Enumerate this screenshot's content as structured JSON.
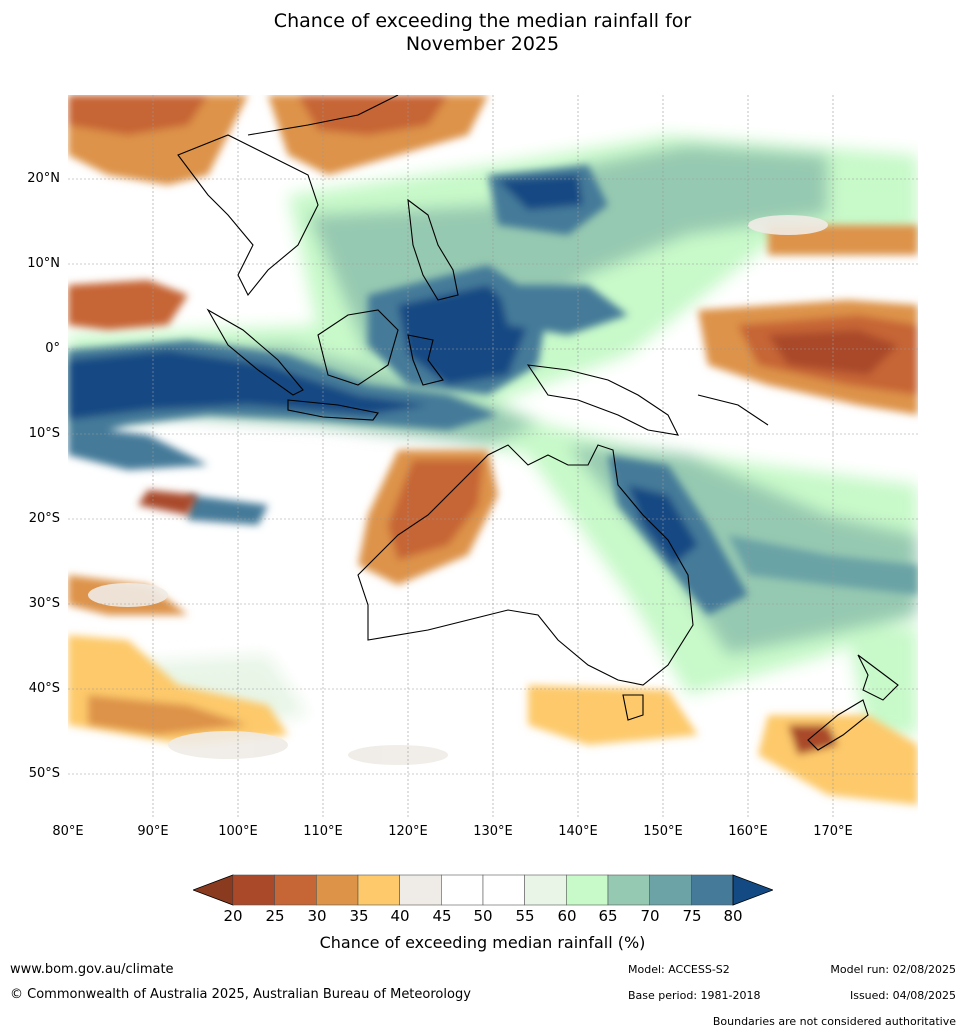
{
  "title_line1": "Chance of exceeding the median rainfall for",
  "title_line2": "November 2025",
  "lat_labels": [
    "20°N",
    "10°N",
    "0°",
    "10°S",
    "20°S",
    "30°S",
    "40°S",
    "50°S"
  ],
  "lon_labels": [
    "80°E",
    "90°E",
    "100°E",
    "110°E",
    "120°E",
    "130°E",
    "140°E",
    "150°E",
    "160°E",
    "170°E"
  ],
  "colorbar": {
    "ticks": [
      "20",
      "25",
      "30",
      "35",
      "40",
      "45",
      "50",
      "55",
      "60",
      "65",
      "70",
      "75",
      "80"
    ],
    "colors": [
      "#8a3a1f",
      "#a9492a",
      "#c66535",
      "#dd9348",
      "#fdc96a",
      "#efebe6",
      "#ffffff",
      "#ffffff",
      "#e8f5e7",
      "#c7f9c9",
      "#96c9b1",
      "#6ba3a6",
      "#457a99",
      "#134a83"
    ],
    "label": "Chance of exceeding median rainfall (%)"
  },
  "footer": {
    "website": "www.bom.gov.au/climate",
    "copyright": "© Commonwealth of Australia 2025, Australian Bureau of Meteorology",
    "model": "Model: ACCESS-S2",
    "base_period": "Base period: 1981-2018",
    "model_run": "Model run: 02/08/2025",
    "issued": "Issued: 04/08/2025",
    "disclaimer": "Boundaries are not considered authoritative"
  }
}
